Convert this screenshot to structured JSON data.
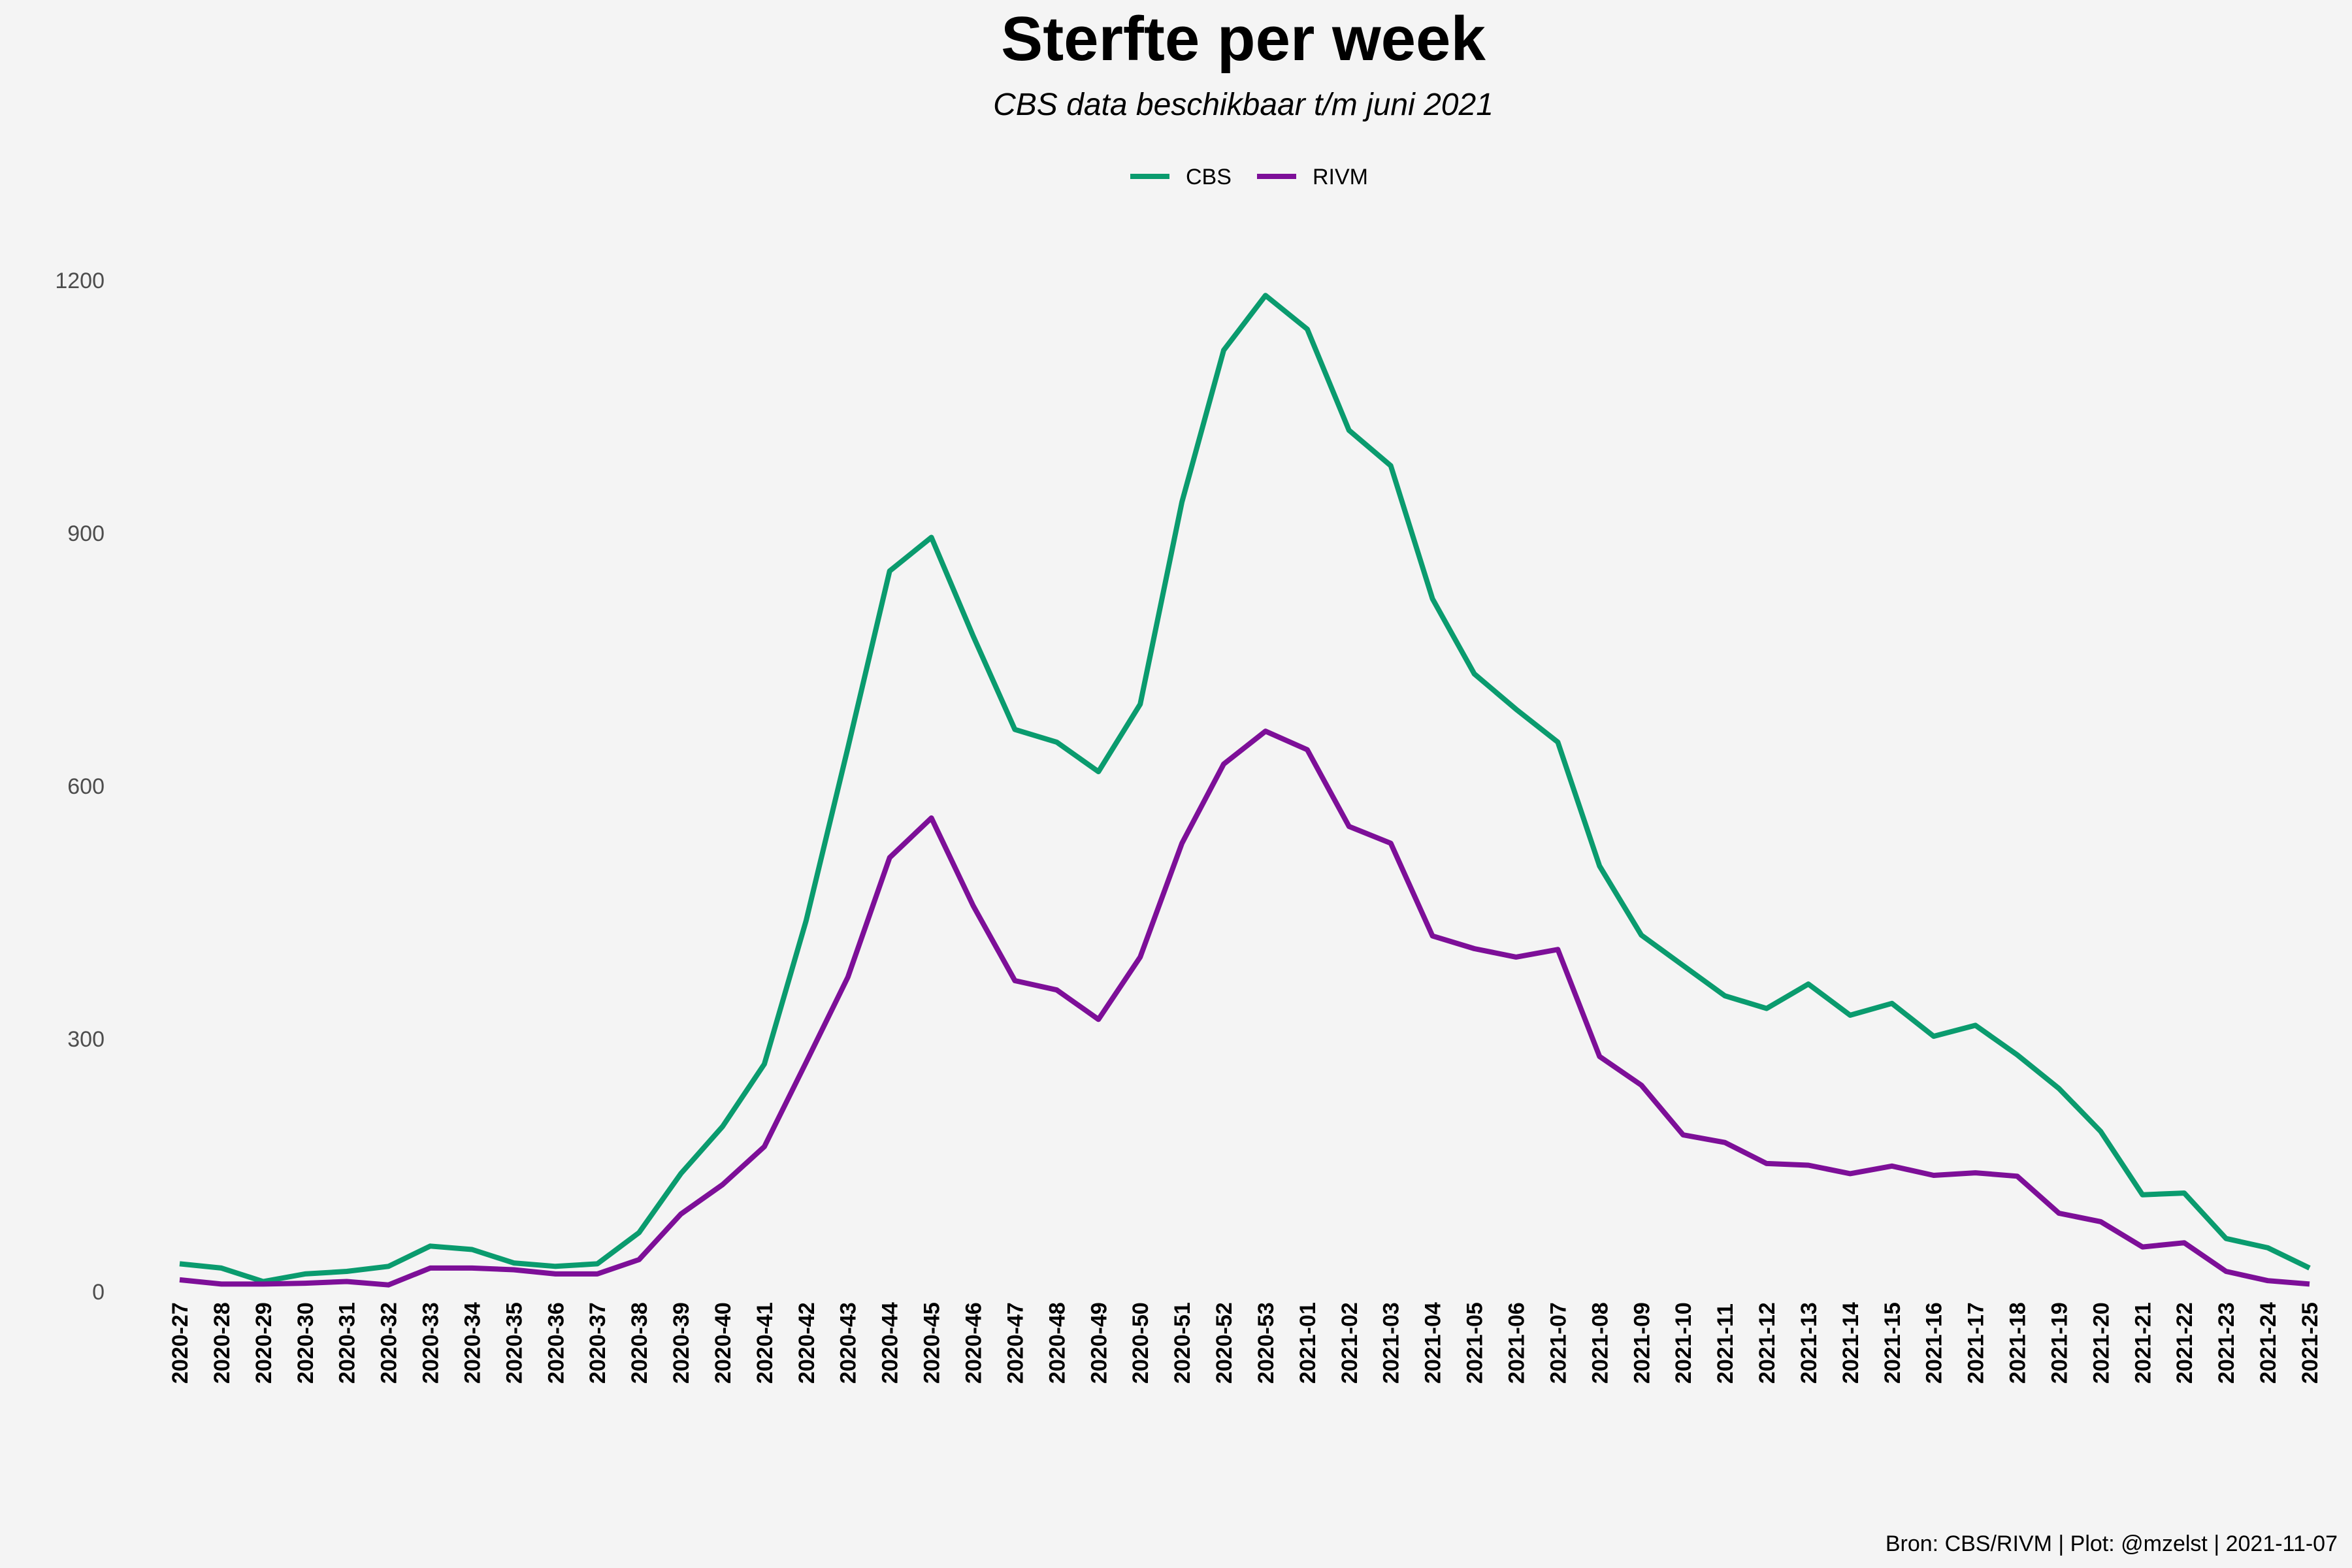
{
  "chart_data": {
    "type": "line",
    "title": "Sterfte per week",
    "subtitle": "CBS data beschikbaar t/m juni 2021",
    "caption": "Bron: CBS/RIVM | Plot: @mzelst  |  2021-11-07",
    "xlabel": "",
    "ylabel": "",
    "ylim": [
      0,
      1200
    ],
    "yticks": [
      0,
      300,
      600,
      900,
      1200
    ],
    "grid": false,
    "legend": "top",
    "categories": [
      "2020-27",
      "2020-28",
      "2020-29",
      "2020-30",
      "2020-31",
      "2020-32",
      "2020-33",
      "2020-34",
      "2020-35",
      "2020-36",
      "2020-37",
      "2020-38",
      "2020-39",
      "2020-40",
      "2020-41",
      "2020-42",
      "2020-43",
      "2020-44",
      "2020-45",
      "2020-46",
      "2020-47",
      "2020-48",
      "2020-49",
      "2020-50",
      "2020-51",
      "2020-52",
      "2020-53",
      "2021-01",
      "2021-02",
      "2021-03",
      "2021-04",
      "2021-05",
      "2021-06",
      "2021-07",
      "2021-08",
      "2021-09",
      "2021-10",
      "2021-11",
      "2021-12",
      "2021-13",
      "2021-14",
      "2021-15",
      "2021-16",
      "2021-17",
      "2021-18",
      "2021-19",
      "2021-20",
      "2021-21",
      "2021-22",
      "2021-23",
      "2021-24",
      "2021-25"
    ],
    "series": [
      {
        "name": "CBS",
        "color": "#0a9b6e",
        "values": [
          33,
          28,
          12,
          21,
          24,
          30,
          54,
          50,
          34,
          30,
          33,
          70,
          140,
          196,
          270,
          440,
          645,
          855,
          895,
          778,
          667,
          652,
          617,
          697,
          937,
          1117,
          1182,
          1142,
          1022,
          980,
          822,
          733,
          691,
          652,
          505,
          423,
          387,
          351,
          336,
          365,
          328,
          342,
          303,
          316,
          281,
          241,
          190,
          115,
          117,
          63,
          52,
          28
        ]
      },
      {
        "name": "RIVM",
        "color": "#7d0f98",
        "values": [
          14,
          9,
          9,
          10,
          12,
          8,
          28,
          28,
          26,
          21,
          21,
          38,
          92,
          127,
          172,
          272,
          373,
          515,
          562,
          458,
          369,
          358,
          323,
          397,
          532,
          626,
          665,
          643,
          552,
          532,
          422,
          407,
          397,
          406,
          279,
          245,
          186,
          177,
          152,
          150,
          140,
          149,
          138,
          141,
          137,
          93,
          83,
          53,
          58,
          24,
          13,
          9
        ]
      }
    ]
  }
}
